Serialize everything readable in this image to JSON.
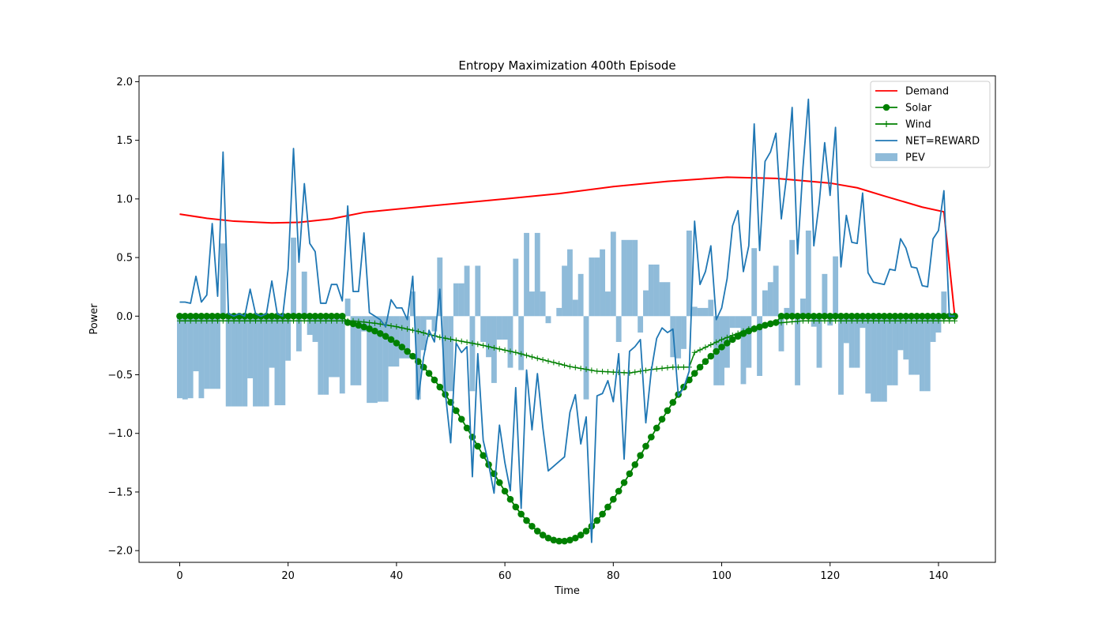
{
  "chart_data": {
    "type": "line",
    "title": "Entropy Maximization 400th Episode",
    "xlabel": "Time",
    "ylabel": "Power",
    "xlim": [
      -7.5,
      150.5
    ],
    "ylim": [
      -2.1,
      2.05
    ],
    "xticks": [
      0,
      20,
      40,
      60,
      80,
      100,
      120,
      140
    ],
    "yticks": [
      -2.0,
      -1.5,
      -1.0,
      -0.5,
      0.0,
      0.5,
      1.0,
      1.5,
      2.0
    ],
    "legend_position": "top-right",
    "grid": false,
    "series": [
      {
        "name": "Demand",
        "type": "line",
        "color": "#ff0000",
        "points": [
          [
            0,
            0.87
          ],
          [
            5,
            0.835
          ],
          [
            10,
            0.81
          ],
          [
            17,
            0.795
          ],
          [
            22,
            0.8
          ],
          [
            28,
            0.83
          ],
          [
            34,
            0.885
          ],
          [
            45,
            0.935
          ],
          [
            60,
            1.0
          ],
          [
            70,
            1.045
          ],
          [
            80,
            1.105
          ],
          [
            90,
            1.15
          ],
          [
            101,
            1.185
          ],
          [
            110,
            1.175
          ],
          [
            120,
            1.135
          ],
          [
            125,
            1.095
          ],
          [
            130,
            1.025
          ],
          [
            137,
            0.93
          ],
          [
            141,
            0.89
          ],
          [
            143,
            0.0
          ]
        ]
      },
      {
        "name": "Solar",
        "type": "line-marker",
        "color": "#008000",
        "curve": {
          "zero_before": 31,
          "zero_after": 110,
          "peak_t": 70.5,
          "peak_value": -1.92,
          "sigma": 14.8
        }
      },
      {
        "name": "Wind",
        "type": "line-plus",
        "color": "#008000",
        "points": [
          [
            0,
            -0.04
          ],
          [
            32,
            -0.04
          ],
          [
            36,
            -0.06
          ],
          [
            40,
            -0.09
          ],
          [
            44,
            -0.13
          ],
          [
            48,
            -0.18
          ],
          [
            55,
            -0.24
          ],
          [
            62,
            -0.31
          ],
          [
            66,
            -0.36
          ],
          [
            72,
            -0.43
          ],
          [
            77,
            -0.47
          ],
          [
            83,
            -0.485
          ],
          [
            87,
            -0.455
          ],
          [
            91,
            -0.435
          ],
          [
            94.5,
            -0.435
          ],
          [
            95,
            -0.31
          ],
          [
            100,
            -0.2
          ],
          [
            105,
            -0.11
          ],
          [
            110,
            -0.06
          ],
          [
            115,
            -0.04
          ],
          [
            143,
            -0.04
          ]
        ]
      },
      {
        "name": "NET=REWARD",
        "type": "line",
        "color": "#1f77b4",
        "values": [
          0.12,
          0.12,
          0.11,
          0.34,
          0.12,
          0.18,
          0.79,
          0.17,
          1.4,
          0.02,
          0.0,
          0.02,
          0.0,
          0.23,
          0.02,
          0.0,
          0.02,
          0.3,
          0.02,
          0.0,
          0.4,
          1.43,
          0.46,
          1.13,
          0.62,
          0.55,
          0.11,
          0.11,
          0.27,
          0.27,
          0.13,
          0.94,
          0.21,
          0.21,
          0.71,
          0.03,
          0.0,
          -0.03,
          -0.09,
          0.14,
          0.07,
          0.07,
          -0.03,
          0.34,
          -0.71,
          -0.35,
          -0.12,
          -0.22,
          0.23,
          -0.65,
          -1.08,
          -0.23,
          -0.31,
          -0.26,
          -1.37,
          -0.32,
          -1.06,
          -1.26,
          -1.51,
          -0.93,
          -1.25,
          -1.49,
          -0.61,
          -1.64,
          -0.46,
          -0.97,
          -0.49,
          -0.95,
          -1.32,
          -1.28,
          -1.24,
          -1.2,
          -0.82,
          -0.67,
          -1.09,
          -0.86,
          -1.93,
          -0.68,
          -0.66,
          -0.55,
          -0.73,
          -0.32,
          -1.22,
          -0.3,
          -0.26,
          -0.2,
          -0.91,
          -0.47,
          -0.19,
          -0.1,
          -0.14,
          -0.11,
          -0.68,
          -0.61,
          -0.47,
          0.81,
          0.27,
          0.38,
          0.6,
          -0.03,
          0.07,
          0.32,
          0.77,
          0.9,
          0.38,
          0.6,
          1.64,
          0.56,
          1.32,
          1.4,
          1.56,
          0.83,
          1.2,
          1.78,
          0.53,
          1.27,
          1.85,
          0.6,
          0.97,
          1.48,
          1.03,
          1.61,
          0.42,
          0.86,
          0.63,
          0.62,
          1.05,
          0.37,
          0.29,
          0.28,
          0.27,
          0.4,
          0.39,
          0.66,
          0.58,
          0.42,
          0.41,
          0.26,
          0.25,
          0.66,
          0.73,
          1.07,
          0.0,
          0.0
        ]
      },
      {
        "name": "PEV",
        "type": "bar",
        "color": "#1f77b4",
        "opacity": 0.5,
        "values": [
          -0.7,
          -0.71,
          -0.7,
          -0.47,
          -0.7,
          -0.62,
          -0.62,
          -0.62,
          0.62,
          -0.77,
          -0.77,
          -0.77,
          -0.77,
          -0.53,
          -0.77,
          -0.77,
          -0.77,
          -0.44,
          -0.76,
          -0.76,
          -0.38,
          0.67,
          -0.3,
          0.38,
          -0.16,
          -0.22,
          -0.67,
          -0.67,
          -0.52,
          -0.52,
          -0.66,
          0.15,
          -0.59,
          -0.59,
          -0.13,
          -0.74,
          -0.74,
          -0.73,
          -0.73,
          -0.43,
          -0.43,
          -0.36,
          -0.36,
          0.21,
          -0.71,
          -0.29,
          -0.03,
          -0.13,
          0.5,
          -0.64,
          -0.64,
          0.28,
          0.28,
          0.43,
          -0.64,
          0.43,
          -0.22,
          -0.35,
          -0.57,
          -0.2,
          -0.2,
          -0.44,
          0.49,
          -0.46,
          0.71,
          0.21,
          0.71,
          0.21,
          -0.06,
          0.0,
          0.07,
          0.43,
          0.57,
          0.14,
          0.36,
          -0.71,
          0.5,
          0.5,
          0.57,
          0.21,
          0.72,
          -0.22,
          0.65,
          0.65,
          0.65,
          -0.14,
          0.22,
          0.44,
          0.44,
          0.29,
          0.29,
          -0.35,
          -0.36,
          -0.28,
          0.73,
          0.08,
          0.07,
          0.07,
          0.14,
          -0.59,
          -0.59,
          -0.44,
          -0.1,
          -0.1,
          -0.58,
          -0.44,
          0.58,
          -0.51,
          0.22,
          0.29,
          0.43,
          -0.3,
          0.07,
          0.65,
          -0.59,
          0.15,
          0.73,
          -0.09,
          -0.44,
          0.36,
          -0.08,
          0.51,
          -0.67,
          -0.23,
          -0.44,
          -0.44,
          -0.1,
          -0.66,
          -0.73,
          -0.73,
          -0.73,
          -0.59,
          -0.59,
          -0.29,
          -0.37,
          -0.5,
          -0.5,
          -0.64,
          -0.64,
          -0.22,
          -0.14,
          0.21,
          0.0,
          0.0
        ]
      }
    ]
  }
}
